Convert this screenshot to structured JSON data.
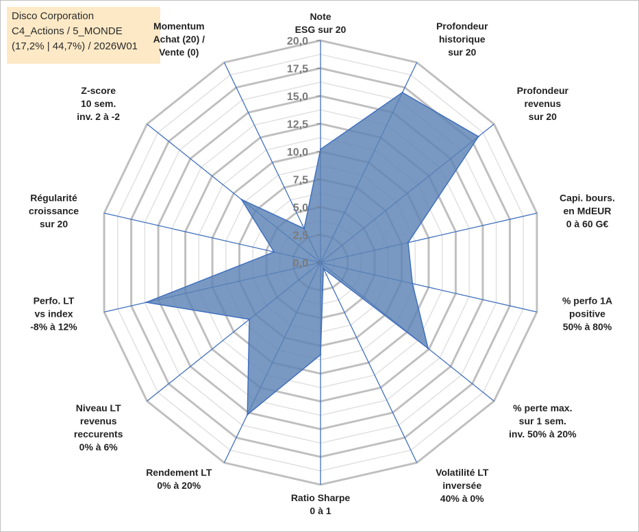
{
  "info_box": {
    "line1": "Disco Corporation",
    "line2": "C4_Actions / 5_MONDE",
    "line3": "(17,2% | 44,7%) / 2026W01"
  },
  "colors": {
    "fill": "#5b82b4",
    "stroke": "#3f6fbd",
    "spokes": "#3f6fbd",
    "major_grid": "#bfbfbf",
    "minor_grid": "#e0e0e0",
    "ticks": "#7a7a7a",
    "labels": "#222222"
  },
  "chart_data": {
    "type": "radar",
    "title": "",
    "rmin": 0,
    "rmax": 20,
    "major_step": 2.5,
    "tick_labels": [
      "0,0",
      "2,5",
      "5,0",
      "7,5",
      "10,0",
      "12,5",
      "15,0",
      "17,5",
      "20,0"
    ],
    "grid": true,
    "axes": [
      {
        "label": [
          "Note",
          "ESG sur 20"
        ],
        "value": 10.2
      },
      {
        "label": [
          "Profondeur",
          "historique",
          "sur 20"
        ],
        "value": 17.0
      },
      {
        "label": [
          "Profondeur",
          "revenus",
          "sur 20"
        ],
        "value": 18.2
      },
      {
        "label": [
          "Capi. bours.",
          "en MdEUR",
          "0 à 60 G€"
        ],
        "value": 8.1
      },
      {
        "label": [
          "% perfo 1A",
          "positive",
          "50% à 80%"
        ],
        "value": 8.5
      },
      {
        "label": [
          "% perte max.",
          "sur 1 sem.",
          "inv. 50% à 20%"
        ],
        "value": 12.4
      },
      {
        "label": [
          "Volatilité LT",
          "inversée",
          "40% à 0%"
        ],
        "value": 0.6
      },
      {
        "label": [
          "Ratio Sharpe",
          "0 à 1"
        ],
        "value": 8.3
      },
      {
        "label": [
          "Rendement LT",
          "0% à 20%"
        ],
        "value": 15.2
      },
      {
        "label": [
          "Niveau LT",
          "revenus",
          "reccurents",
          "0% à 6%"
        ],
        "value": 8.2
      },
      {
        "label": [
          "Perfo. LT",
          "vs index",
          "-8% à 12%"
        ],
        "value": 16.1
      },
      {
        "label": [
          "Régularité",
          "croissance",
          "sur 20"
        ],
        "value": 4.3
      },
      {
        "label": [
          "Z-score",
          "10 sem.",
          "inv. 2 à -2"
        ],
        "value": 9.1
      },
      {
        "label": [
          "Momentum",
          "Achat (20) /",
          "Vente (0)"
        ],
        "value": 3.4
      }
    ]
  }
}
